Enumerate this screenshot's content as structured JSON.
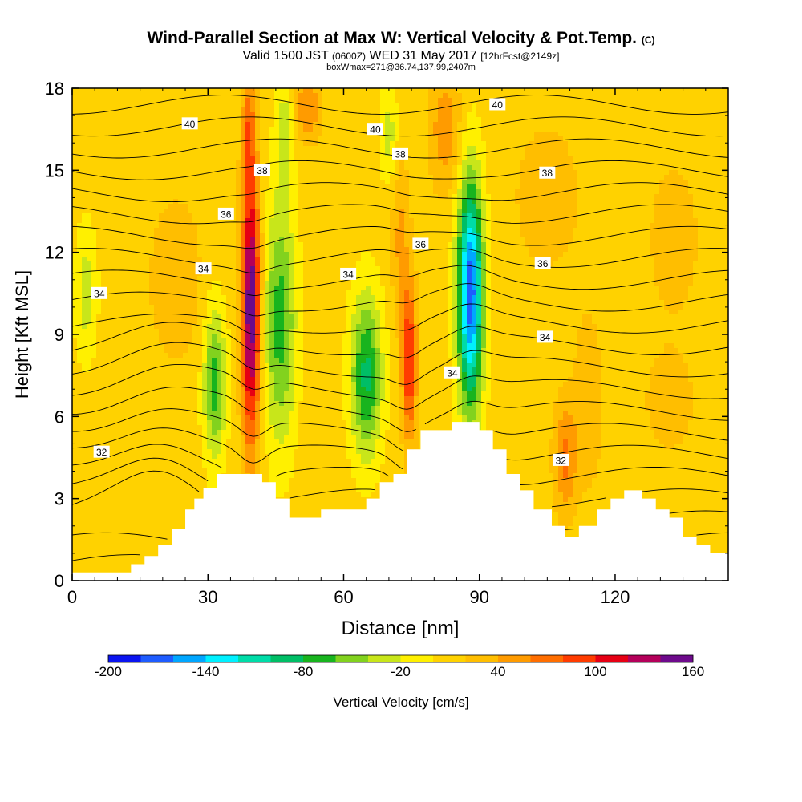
{
  "header": {
    "title": "Wind-Parallel Section at Max W: Vertical Velocity & Pot.Temp.",
    "copyright": "(C)",
    "valid_prefix": "Valid 1500 JST",
    "valid_utc": "(0600Z)",
    "valid_date": "WED 31 May 2017",
    "forecast_note": "[12hrFcst@2149z]",
    "box_info": "boxWmax=271@36.74,137.99,2407m"
  },
  "colors": {
    "terrain": "#ffffff",
    "contour_line": "#000000"
  },
  "chart_data": {
    "type": "heatmap",
    "xlabel": "Distance [nm]",
    "ylabel": "Height [Kft MSL]",
    "xlim": [
      0,
      145
    ],
    "ylim": [
      0,
      18
    ],
    "xticks": [
      0,
      30,
      60,
      90,
      120
    ],
    "yticks": [
      0,
      3,
      6,
      9,
      12,
      15,
      18
    ],
    "colorbar": {
      "label": "Vertical Velocity [cm/s]",
      "tick_values": [
        -200,
        -140,
        -80,
        -20,
        40,
        100,
        160
      ],
      "bins": [
        {
          "from": -200,
          "to": -180,
          "color": "#0a14f0"
        },
        {
          "from": -180,
          "to": -160,
          "color": "#1e5cff"
        },
        {
          "from": -160,
          "to": -140,
          "color": "#00a6ff"
        },
        {
          "from": -140,
          "to": -120,
          "color": "#00f0ff"
        },
        {
          "from": -120,
          "to": -100,
          "color": "#00dca8"
        },
        {
          "from": -100,
          "to": -80,
          "color": "#00be66"
        },
        {
          "from": -80,
          "to": -60,
          "color": "#18b41e"
        },
        {
          "from": -60,
          "to": -40,
          "color": "#82d21e"
        },
        {
          "from": -40,
          "to": -20,
          "color": "#c8e61a"
        },
        {
          "from": -20,
          "to": 0,
          "color": "#fff000"
        },
        {
          "from": 0,
          "to": 20,
          "color": "#ffd200"
        },
        {
          "from": 20,
          "to": 40,
          "color": "#ffbe00"
        },
        {
          "from": 40,
          "to": 60,
          "color": "#ff9b00"
        },
        {
          "from": 60,
          "to": 80,
          "color": "#ff6e00"
        },
        {
          "from": 80,
          "to": 100,
          "color": "#ff3c00"
        },
        {
          "from": 100,
          "to": 120,
          "color": "#e60014"
        },
        {
          "from": 120,
          "to": 140,
          "color": "#b4005a"
        },
        {
          "from": 140,
          "to": 160,
          "color": "#6e0a8c"
        }
      ]
    },
    "vertical_velocity_features": [
      {
        "x": 39.5,
        "y": 10,
        "sx": 2.0,
        "sy": 5.0,
        "value": 150,
        "note": "strong updraft"
      },
      {
        "x": 39.0,
        "y": 16.5,
        "sx": 1.5,
        "sy": 2.0,
        "value": 50
      },
      {
        "x": 46,
        "y": 9.5,
        "sx": 3.5,
        "sy": 4.5,
        "value": -80
      },
      {
        "x": 47,
        "y": 16.5,
        "sx": 2.0,
        "sy": 2.0,
        "value": -40
      },
      {
        "x": 52,
        "y": 17.3,
        "sx": 3.0,
        "sy": 1.2,
        "value": 50
      },
      {
        "x": 31.5,
        "y": 7.2,
        "sx": 2.5,
        "sy": 2.8,
        "value": -80
      },
      {
        "x": 65,
        "y": 7.5,
        "sx": 3.5,
        "sy": 3.0,
        "value": -95
      },
      {
        "x": 74.5,
        "y": 8.0,
        "sx": 1.6,
        "sy": 2.8,
        "value": 95
      },
      {
        "x": 72.5,
        "y": 12.5,
        "sx": 2.0,
        "sy": 3.0,
        "value": 35
      },
      {
        "x": 70,
        "y": 16.3,
        "sx": 2.0,
        "sy": 1.8,
        "value": -40
      },
      {
        "x": 88,
        "y": 10.5,
        "sx": 2.8,
        "sy": 4.2,
        "value": -185,
        "note": "strong downdraft"
      },
      {
        "x": 82.5,
        "y": 16.5,
        "sx": 3.5,
        "sy": 2.2,
        "value": 45
      },
      {
        "x": 109,
        "y": 4.5,
        "sx": 2.5,
        "sy": 2.0,
        "value": 55
      },
      {
        "x": 114,
        "y": 6.5,
        "sx": 3.0,
        "sy": 3.0,
        "value": 30
      },
      {
        "x": 23,
        "y": 11,
        "sx": 6,
        "sy": 3.0,
        "value": 25
      },
      {
        "x": 3,
        "y": 10.5,
        "sx": 2.5,
        "sy": 2.5,
        "value": -40
      },
      {
        "x": 133,
        "y": 12.5,
        "sx": 6,
        "sy": 3.0,
        "value": 20
      },
      {
        "x": 105,
        "y": 14,
        "sx": 8,
        "sy": 3.0,
        "value": 20
      },
      {
        "x": 132,
        "y": 6.5,
        "sx": 6,
        "sy": 2.0,
        "value": 20
      }
    ],
    "terrain_profile": [
      [
        0,
        0.3
      ],
      [
        13,
        0.3
      ],
      [
        13,
        0.6
      ],
      [
        16,
        0.6
      ],
      [
        16,
        0.9
      ],
      [
        19,
        0.9
      ],
      [
        19,
        1.3
      ],
      [
        22,
        1.3
      ],
      [
        22,
        1.9
      ],
      [
        25,
        1.9
      ],
      [
        25,
        2.6
      ],
      [
        27,
        2.6
      ],
      [
        27,
        3.0
      ],
      [
        29,
        3.0
      ],
      [
        29,
        3.4
      ],
      [
        32,
        3.4
      ],
      [
        32,
        3.9
      ],
      [
        42,
        3.9
      ],
      [
        42,
        3.6
      ],
      [
        45,
        3.6
      ],
      [
        45,
        3.0
      ],
      [
        48,
        3.0
      ],
      [
        48,
        2.3
      ],
      [
        55,
        2.3
      ],
      [
        55,
        2.6
      ],
      [
        65,
        2.6
      ],
      [
        65,
        3.0
      ],
      [
        68,
        3.0
      ],
      [
        68,
        3.6
      ],
      [
        71,
        3.6
      ],
      [
        71,
        3.9
      ],
      [
        74,
        3.9
      ],
      [
        74,
        4.8
      ],
      [
        77,
        4.8
      ],
      [
        77,
        5.5
      ],
      [
        84,
        5.5
      ],
      [
        84,
        5.8
      ],
      [
        90,
        5.8
      ],
      [
        90,
        5.5
      ],
      [
        93,
        5.5
      ],
      [
        93,
        4.8
      ],
      [
        96,
        4.8
      ],
      [
        96,
        3.9
      ],
      [
        99,
        3.9
      ],
      [
        99,
        3.3
      ],
      [
        102,
        3.3
      ],
      [
        102,
        2.6
      ],
      [
        106,
        2.6
      ],
      [
        106,
        2.0
      ],
      [
        109,
        2.0
      ],
      [
        109,
        1.6
      ],
      [
        112,
        1.6
      ],
      [
        112,
        2.0
      ],
      [
        116,
        2.0
      ],
      [
        116,
        2.6
      ],
      [
        119,
        2.6
      ],
      [
        119,
        3.0
      ],
      [
        122,
        3.0
      ],
      [
        122,
        3.3
      ],
      [
        126,
        3.3
      ],
      [
        126,
        3.0
      ],
      [
        129,
        3.0
      ],
      [
        129,
        2.6
      ],
      [
        132,
        2.6
      ],
      [
        132,
        2.3
      ],
      [
        135,
        2.3
      ],
      [
        135,
        1.6
      ],
      [
        138,
        1.6
      ],
      [
        138,
        1.3
      ],
      [
        141,
        1.3
      ],
      [
        141,
        1.0
      ],
      [
        145,
        1.0
      ]
    ],
    "potential_temperature_contours": [
      {
        "value": 32,
        "label": "32",
        "label_x": 6.5,
        "label_y": 4.7
      },
      {
        "value": 32,
        "label": "32",
        "label_x": 108,
        "label_y": 4.4
      },
      {
        "value": 34,
        "label": "34",
        "label_x": 6,
        "label_y": 10.5
      },
      {
        "value": 34,
        "label": "34",
        "label_x": 29,
        "label_y": 11.4
      },
      {
        "value": 34,
        "label": "34",
        "label_x": 61,
        "label_y": 11.2
      },
      {
        "value": 34,
        "label": "34",
        "label_x": 84,
        "label_y": 7.6
      },
      {
        "value": 34,
        "label": "34",
        "label_x": 104.5,
        "label_y": 8.9
      },
      {
        "value": 36,
        "label": "36",
        "label_x": 34,
        "label_y": 13.4
      },
      {
        "value": 36,
        "label": "36",
        "label_x": 77,
        "label_y": 12.3
      },
      {
        "value": 36,
        "label": "36",
        "label_x": 104,
        "label_y": 11.6
      },
      {
        "value": 38,
        "label": "38",
        "label_x": 42,
        "label_y": 15
      },
      {
        "value": 38,
        "label": "38",
        "label_x": 72.5,
        "label_y": 15.6
      },
      {
        "value": 38,
        "label": "38",
        "label_x": 105,
        "label_y": 14.9
      },
      {
        "value": 40,
        "label": "40",
        "label_x": 26,
        "label_y": 16.7
      },
      {
        "value": 40,
        "label": "40",
        "label_x": 67,
        "label_y": 16.5
      },
      {
        "value": 40,
        "label": "40",
        "label_x": 94,
        "label_y": 17.4
      }
    ]
  }
}
